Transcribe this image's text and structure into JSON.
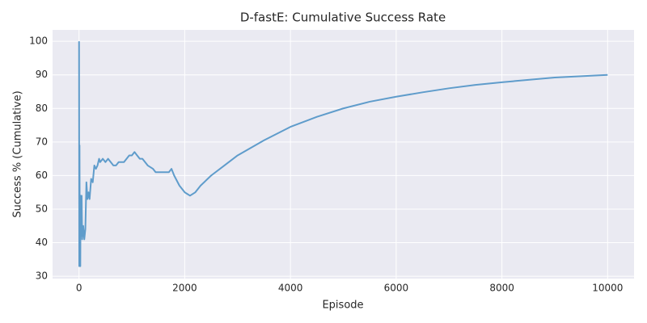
{
  "chart_data": {
    "type": "line",
    "title": "D-fastE: Cumulative Success Rate",
    "xlabel": "Episode",
    "ylabel": "Success % (Cumulative)",
    "x": [
      1,
      5,
      10,
      15,
      20,
      25,
      30,
      40,
      50,
      60,
      80,
      100,
      120,
      140,
      160,
      180,
      200,
      230,
      260,
      290,
      320,
      350,
      380,
      400,
      450,
      500,
      550,
      600,
      650,
      700,
      750,
      800,
      850,
      900,
      950,
      1000,
      1050,
      1100,
      1150,
      1200,
      1300,
      1400,
      1450,
      1500,
      1600,
      1700,
      1750,
      1800,
      1900,
      2000,
      2050,
      2100,
      2200,
      2300,
      2500,
      2750,
      3000,
      3500,
      4000,
      4500,
      5000,
      5500,
      6000,
      6500,
      7000,
      7500,
      8000,
      8500,
      9000,
      9500,
      10000
    ],
    "values": [
      100,
      33,
      69,
      34,
      50,
      33,
      54,
      42,
      54,
      41,
      45,
      41,
      44,
      58,
      53,
      55,
      53,
      59,
      58,
      63,
      62,
      63,
      65,
      64,
      65,
      64,
      65,
      64,
      63,
      63,
      64,
      64,
      64,
      65,
      66,
      66,
      67,
      66,
      65,
      65,
      63,
      62,
      61,
      61,
      61,
      61,
      62,
      60,
      57,
      55,
      54.5,
      54,
      55,
      57,
      60,
      63,
      66,
      70.5,
      74.5,
      77.5,
      80,
      82,
      83.5,
      84.8,
      86,
      87,
      87.8,
      88.5,
      89.2,
      89.6,
      90
    ],
    "color": "#5f9ccb",
    "xlim": [
      -500,
      10500
    ],
    "ylim": [
      29.3,
      103.4
    ],
    "xticks": [
      0,
      2000,
      4000,
      6000,
      8000,
      10000
    ],
    "yticks": [
      30,
      40,
      50,
      60,
      70,
      80,
      90,
      100
    ],
    "grid": true
  }
}
